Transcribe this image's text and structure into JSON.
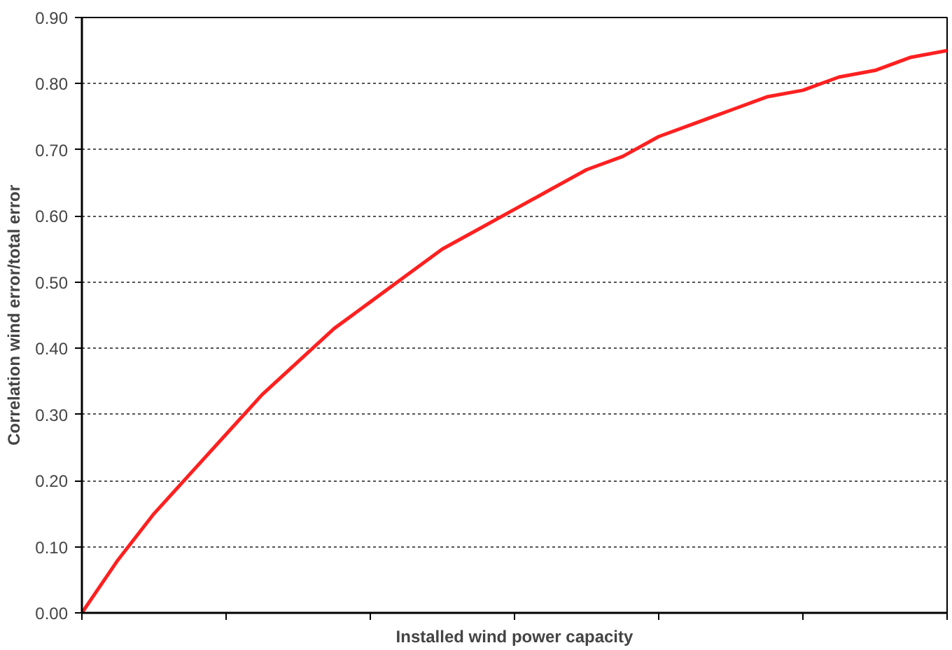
{
  "chart_data": {
    "type": "line",
    "xlabel": "Installed wind power capacity",
    "ylabel": "Correlation wind error/total error",
    "categories": [
      null,
      null,
      null,
      null,
      null,
      null,
      null,
      null,
      null,
      null,
      null,
      null,
      null,
      null,
      null,
      null,
      null,
      null,
      null,
      null,
      null,
      null,
      null,
      null,
      null
    ],
    "series": [
      {
        "color": "#ff2020",
        "values": [
          0,
          0.08,
          0.15,
          0.21,
          0.27,
          0.33,
          0.38,
          0.43,
          0.47,
          0.51,
          0.55,
          0.58,
          0.61,
          0.64,
          0.67,
          0.69,
          0.72,
          0.74,
          0.76,
          0.78,
          0.79,
          0.81,
          0.82,
          0.84,
          0.85
        ]
      }
    ],
    "ylim": [
      0,
      0.9
    ],
    "yticks": [
      {
        "value": 0,
        "label": "0.00"
      },
      {
        "value": 0.1,
        "label": "0.10"
      },
      {
        "value": 0.2,
        "label": "0.20"
      },
      {
        "value": 0.3,
        "label": "0.30"
      },
      {
        "value": 0.4,
        "label": "0.40"
      },
      {
        "value": 0.5,
        "label": "0.50"
      },
      {
        "value": 0.6,
        "label": "0.60"
      },
      {
        "value": 0.7,
        "label": "0.70"
      },
      {
        "value": 0.8,
        "label": "0.80"
      },
      {
        "value": 0.9,
        "label": "0.90"
      }
    ],
    "grid": "y",
    "tick_labels": "y"
  }
}
